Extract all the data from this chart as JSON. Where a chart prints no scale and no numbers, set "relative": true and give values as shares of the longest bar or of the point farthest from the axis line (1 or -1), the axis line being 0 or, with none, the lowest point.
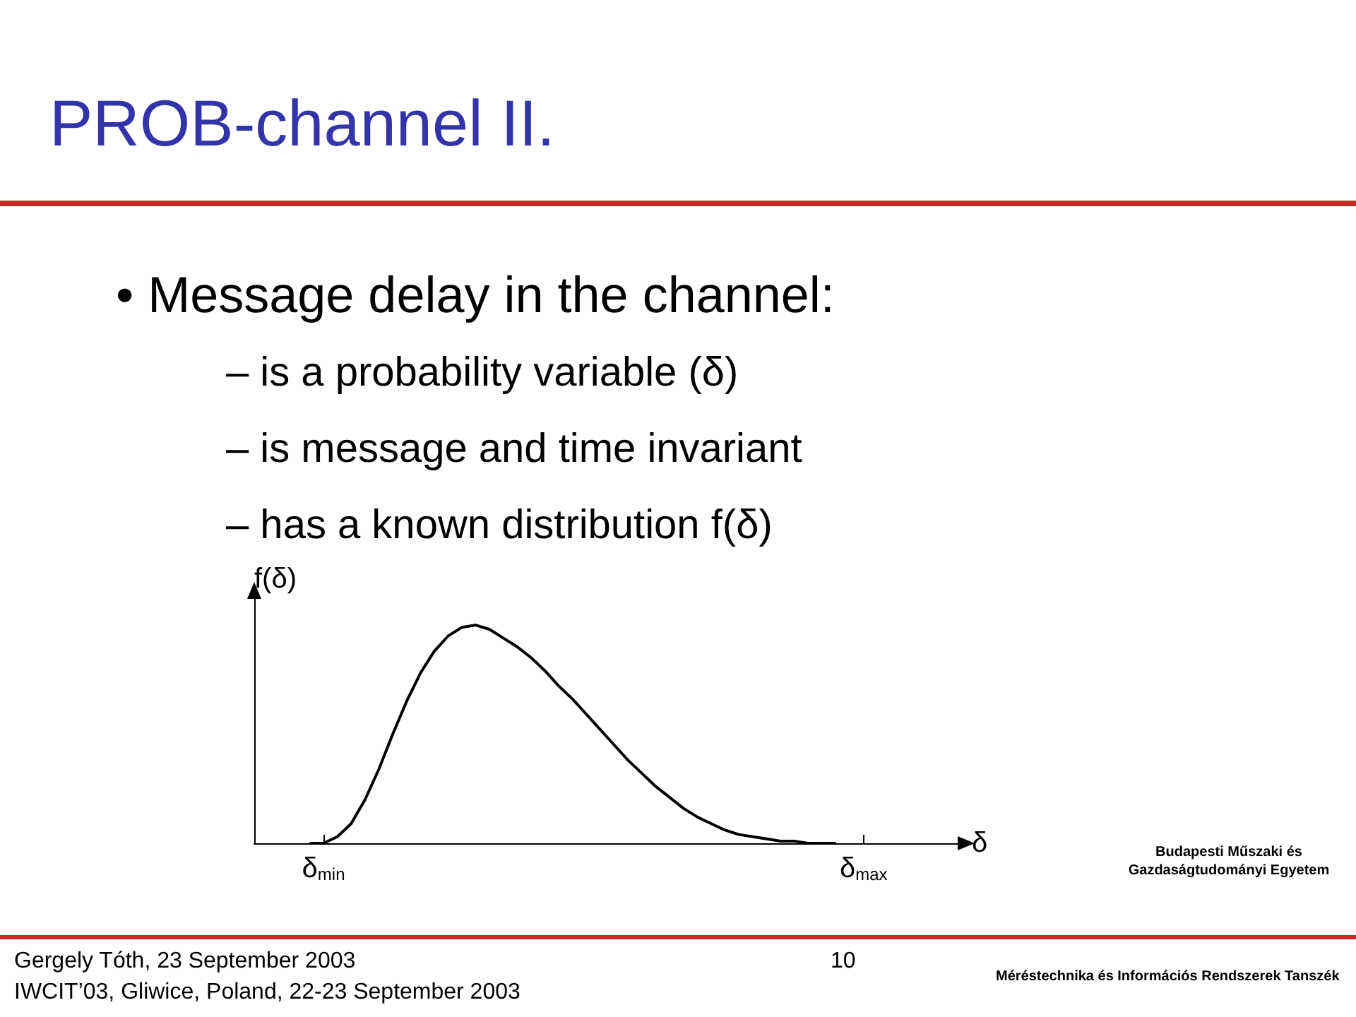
{
  "chart_data": {
    "type": "line",
    "title": "PROB-channel II.",
    "xlabel": "δ",
    "ylabel": "f(δ)",
    "relative": true,
    "color": "#000000",
    "marker": "none",
    "grid": false,
    "categories": [
      null,
      null,
      null,
      null,
      null,
      "δ$_{min}$",
      null,
      null,
      null,
      null,
      null,
      null,
      null,
      null,
      null,
      null,
      null,
      null,
      null,
      null,
      null,
      null,
      null,
      null,
      null,
      null,
      null,
      null,
      null,
      null,
      null,
      null,
      null,
      null,
      null,
      null,
      null,
      null,
      null,
      null,
      null,
      null,
      null,
      null,
      "δ$_{max}$",
      null,
      null,
      null,
      null,
      null,
      null,
      null
    ],
    "values": [
      null,
      null,
      null,
      null,
      0,
      0,
      0.03,
      0.09,
      0.2,
      0.34,
      0.5,
      0.65,
      0.78,
      0.88,
      0.95,
      0.99,
      1,
      0.98,
      0.94,
      0.9,
      0.85,
      0.79,
      0.72,
      0.66,
      0.59,
      0.52,
      0.45,
      0.38,
      0.32,
      0.26,
      0.21,
      0.16,
      0.12,
      0.09,
      0.06,
      0.04,
      0.03,
      0.02,
      0.01,
      0.01,
      0,
      0,
      0,
      null,
      null,
      null,
      null,
      null,
      null,
      null,
      null,
      null
    ],
    "annotations": [
      "• Message delay in the channel:",
      "– is a probability variable (δ)",
      "– is message and time invariant",
      "– has a known distribution f(δ)",
      "Gergely Tóth, 23 September 2003",
      "10",
      "IWCIT’03, Gliwice, Poland, 22-23 September 2003",
      "Budapesti Műszaki és Gazdaságtudományi Egyetem",
      "Méréstechnika és Információs Rendszerek Tanszék"
    ]
  }
}
